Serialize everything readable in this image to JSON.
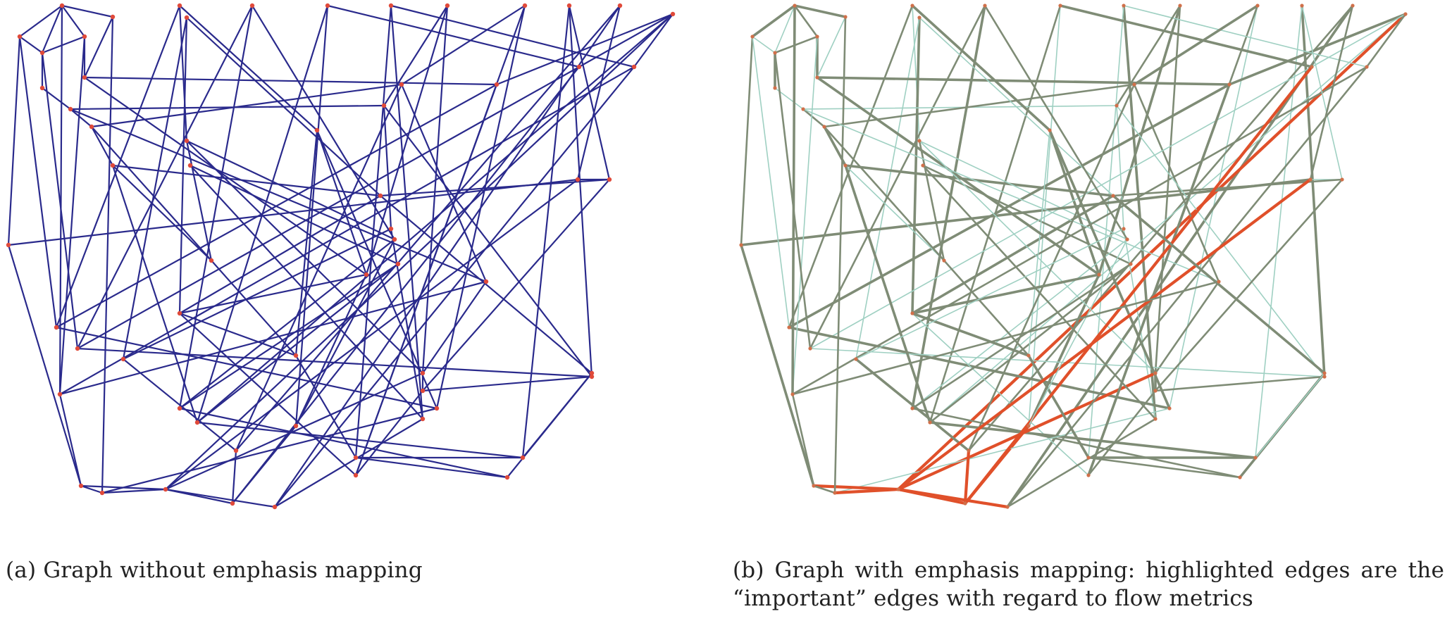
{
  "figure": {
    "panel_a": {
      "caption": "(a) Graph without emphasis mapping",
      "colors": {
        "edge": "#2a2a8c",
        "node": "#e04a3a"
      }
    },
    "panel_b": {
      "caption": "(b) Graph with emphasis mapping: highlighted edges are the “important” edges with regard to flow metrics",
      "colors": {
        "edge_low": "#9fd0c2",
        "edge_mid": "#7f8c76",
        "edge_high": "#e0502a",
        "node": "#d0704a"
      }
    }
  }
}
